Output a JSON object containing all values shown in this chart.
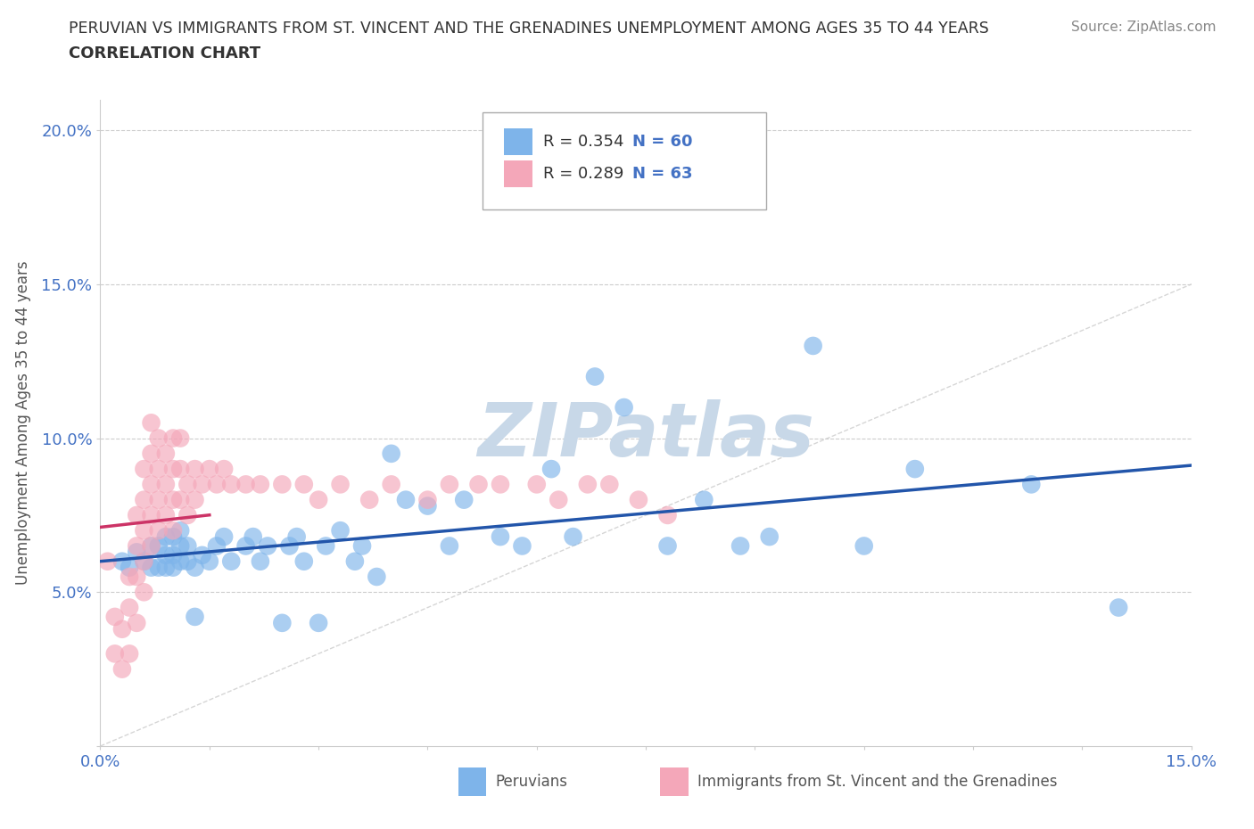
{
  "title_line1": "PERUVIAN VS IMMIGRANTS FROM ST. VINCENT AND THE GRENADINES UNEMPLOYMENT AMONG AGES 35 TO 44 YEARS",
  "title_line2": "CORRELATION CHART",
  "source_text": "Source: ZipAtlas.com",
  "ylabel": "Unemployment Among Ages 35 to 44 years",
  "xlim": [
    0.0,
    0.15
  ],
  "ylim": [
    0.0,
    0.21
  ],
  "x_ticks": [
    0.0,
    0.015,
    0.03,
    0.045,
    0.06,
    0.075,
    0.09,
    0.105,
    0.12,
    0.135,
    0.15
  ],
  "x_tick_labels": [
    "0.0%",
    "",
    "",
    "",
    "",
    "",
    "",
    "",
    "",
    "",
    "15.0%"
  ],
  "y_ticks": [
    0.0,
    0.05,
    0.1,
    0.15,
    0.2
  ],
  "y_tick_labels": [
    "",
    "5.0%",
    "10.0%",
    "15.0%",
    "20.0%"
  ],
  "peruvian_color": "#7EB4EA",
  "svg_color": "#F4A7B9",
  "trend_blue": "#2255AA",
  "trend_pink": "#CC3366",
  "watermark_color": "#C8D8E8",
  "legend_R_blue": "0.354",
  "legend_N_blue": "60",
  "legend_R_pink": "0.289",
  "legend_N_pink": "63",
  "peruvians_x": [
    0.003,
    0.004,
    0.005,
    0.006,
    0.007,
    0.007,
    0.008,
    0.008,
    0.009,
    0.009,
    0.009,
    0.01,
    0.01,
    0.01,
    0.011,
    0.011,
    0.011,
    0.012,
    0.012,
    0.013,
    0.013,
    0.014,
    0.015,
    0.016,
    0.017,
    0.018,
    0.02,
    0.021,
    0.022,
    0.023,
    0.025,
    0.026,
    0.027,
    0.028,
    0.03,
    0.031,
    0.033,
    0.035,
    0.036,
    0.038,
    0.04,
    0.042,
    0.045,
    0.048,
    0.05,
    0.055,
    0.058,
    0.062,
    0.065,
    0.068,
    0.072,
    0.078,
    0.083,
    0.088,
    0.092,
    0.098,
    0.105,
    0.112,
    0.128,
    0.14
  ],
  "peruvians_y": [
    0.06,
    0.058,
    0.063,
    0.06,
    0.058,
    0.065,
    0.058,
    0.065,
    0.058,
    0.062,
    0.068,
    0.058,
    0.062,
    0.068,
    0.06,
    0.065,
    0.07,
    0.06,
    0.065,
    0.042,
    0.058,
    0.062,
    0.06,
    0.065,
    0.068,
    0.06,
    0.065,
    0.068,
    0.06,
    0.065,
    0.04,
    0.065,
    0.068,
    0.06,
    0.04,
    0.065,
    0.07,
    0.06,
    0.065,
    0.055,
    0.095,
    0.08,
    0.078,
    0.065,
    0.08,
    0.068,
    0.065,
    0.09,
    0.068,
    0.12,
    0.11,
    0.065,
    0.08,
    0.065,
    0.068,
    0.13,
    0.065,
    0.09,
    0.085,
    0.045
  ],
  "svg_x": [
    0.001,
    0.002,
    0.002,
    0.003,
    0.003,
    0.004,
    0.004,
    0.004,
    0.005,
    0.005,
    0.005,
    0.005,
    0.006,
    0.006,
    0.006,
    0.006,
    0.006,
    0.007,
    0.007,
    0.007,
    0.007,
    0.007,
    0.008,
    0.008,
    0.008,
    0.008,
    0.009,
    0.009,
    0.009,
    0.01,
    0.01,
    0.01,
    0.01,
    0.011,
    0.011,
    0.011,
    0.012,
    0.012,
    0.013,
    0.013,
    0.014,
    0.015,
    0.016,
    0.017,
    0.018,
    0.02,
    0.022,
    0.025,
    0.028,
    0.03,
    0.033,
    0.037,
    0.04,
    0.045,
    0.048,
    0.052,
    0.055,
    0.06,
    0.063,
    0.067,
    0.07,
    0.074,
    0.078
  ],
  "svg_y": [
    0.06,
    0.03,
    0.042,
    0.025,
    0.038,
    0.03,
    0.045,
    0.055,
    0.04,
    0.055,
    0.065,
    0.075,
    0.05,
    0.06,
    0.07,
    0.08,
    0.09,
    0.065,
    0.075,
    0.085,
    0.095,
    0.105,
    0.07,
    0.08,
    0.09,
    0.1,
    0.075,
    0.085,
    0.095,
    0.07,
    0.08,
    0.09,
    0.1,
    0.08,
    0.09,
    0.1,
    0.075,
    0.085,
    0.08,
    0.09,
    0.085,
    0.09,
    0.085,
    0.09,
    0.085,
    0.085,
    0.085,
    0.085,
    0.085,
    0.08,
    0.085,
    0.08,
    0.085,
    0.08,
    0.085,
    0.085,
    0.085,
    0.085,
    0.08,
    0.085,
    0.085,
    0.08,
    0.075
  ]
}
